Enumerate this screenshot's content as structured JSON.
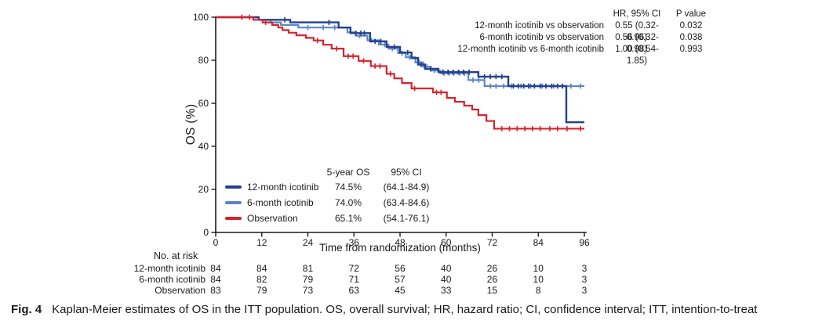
{
  "figure": {
    "caption_label": "Fig. 4",
    "caption_text": "Kaplan-Meier estimates of OS in the ITT population. OS, overall survival; HR, hazard ratio; CI, confidence interval; ITT, intention-to-treat"
  },
  "hr_table": {
    "col_headers": {
      "hr": "HR, 95% CI",
      "p": "P value"
    },
    "rows": [
      {
        "label": "12-month icotinib vs observation",
        "hr": "0.55 (0.32-0.96)",
        "p": "0.032"
      },
      {
        "label": "6-month icotinib vs observation",
        "hr": "0.56 (0.32-0.98)",
        "p": "0.038"
      },
      {
        "label": "12-month icotinib vs 6-month icotinib",
        "hr": "1.00 (0.54-1.85)",
        "p": "0.993"
      }
    ]
  },
  "legend_table": {
    "col_headers": {
      "os": "5-year OS",
      "ci": "95% CI"
    },
    "rows": [
      {
        "label": "12-month icotinib",
        "os": "74.5%",
        "ci": "(64.1-84.9)",
        "color": "#24418e"
      },
      {
        "label": "6-month icotinib",
        "os": "74.0%",
        "ci": "(63.4-84.6)",
        "color": "#5b87c7"
      },
      {
        "label": "Observation",
        "os": "65.1%",
        "ci": "(54.1-76.1)",
        "color": "#d8232f"
      }
    ]
  },
  "risk_table": {
    "title": "No. at risk",
    "rows": [
      {
        "label": "12-month icotinib",
        "values": [
          84,
          84,
          81,
          72,
          56,
          40,
          26,
          10,
          3
        ]
      },
      {
        "label": "6-month icotinib",
        "values": [
          84,
          82,
          79,
          71,
          57,
          40,
          26,
          10,
          3
        ]
      },
      {
        "label": "Observation",
        "values": [
          83,
          79,
          73,
          63,
          45,
          33,
          15,
          8,
          3
        ]
      }
    ]
  },
  "chart_data": {
    "type": "line",
    "subtype": "kaplan-meier-step",
    "title": "",
    "xlabel": "Time from randomization (months)",
    "ylabel": "OS (%)",
    "xlim": [
      0,
      96
    ],
    "ylim": [
      0,
      100
    ],
    "x_ticks": [
      0,
      12,
      24,
      36,
      48,
      60,
      72,
      84,
      96
    ],
    "y_ticks": [
      0,
      20,
      40,
      60,
      80,
      100
    ],
    "grid": false,
    "legend_position": "inside-lower-left",
    "series": [
      {
        "id": "12-month-icotinib",
        "name": "12-month icotinib",
        "color": "#24418e",
        "width": 2.4,
        "z": 2,
        "steps": [
          [
            0,
            100
          ],
          [
            11.2,
            98.8
          ],
          [
            19.4,
            97.6
          ],
          [
            32,
            95.2
          ],
          [
            35.1,
            92.6
          ],
          [
            40.2,
            88.8
          ],
          [
            44.5,
            86.2
          ],
          [
            48,
            83.6
          ],
          [
            51,
            81
          ],
          [
            52.7,
            78
          ],
          [
            54.5,
            76
          ],
          [
            58,
            74.5
          ],
          [
            68.4,
            72.4
          ],
          [
            76.2,
            68
          ],
          [
            91.3,
            51.2
          ],
          [
            96,
            51.2
          ]
        ],
        "censors": [
          [
            18,
            98.8
          ],
          [
            29.5,
            97.6
          ],
          [
            36.5,
            92.6
          ],
          [
            37.8,
            92.6
          ],
          [
            38.7,
            92.6
          ],
          [
            41.5,
            88.8
          ],
          [
            43,
            88.8
          ],
          [
            46.5,
            86.2
          ],
          [
            50,
            83.6
          ],
          [
            53.5,
            78
          ],
          [
            56,
            76
          ],
          [
            59.2,
            74.5
          ],
          [
            60.5,
            74.5
          ],
          [
            61.8,
            74.5
          ],
          [
            63.2,
            74.5
          ],
          [
            64.5,
            74.5
          ],
          [
            66,
            74.5
          ],
          [
            70,
            72.4
          ],
          [
            71.5,
            72.4
          ],
          [
            73,
            72.4
          ],
          [
            74.5,
            72.4
          ],
          [
            77.5,
            68
          ],
          [
            78.8,
            68
          ],
          [
            80.2,
            68
          ],
          [
            81.5,
            68
          ],
          [
            83,
            68
          ],
          [
            84.5,
            68
          ],
          [
            86,
            68
          ],
          [
            87.5,
            68
          ],
          [
            89,
            68
          ],
          [
            90.3,
            68
          ]
        ]
      },
      {
        "id": "6-month-icotinib",
        "name": "6-month icotinib",
        "color": "#5b87c7",
        "width": 2.2,
        "z": 1,
        "steps": [
          [
            0,
            100
          ],
          [
            11.2,
            98.8
          ],
          [
            14.3,
            97.6
          ],
          [
            17,
            96.4
          ],
          [
            21.5,
            95.2
          ],
          [
            34.3,
            93
          ],
          [
            36.5,
            91.4
          ],
          [
            39.5,
            89.3
          ],
          [
            42.5,
            87.3
          ],
          [
            45,
            85.4
          ],
          [
            47.5,
            83.3
          ],
          [
            49.5,
            81.4
          ],
          [
            52,
            79
          ],
          [
            54,
            77
          ],
          [
            56,
            75.2
          ],
          [
            58.5,
            74
          ],
          [
            65.8,
            70.8
          ],
          [
            70,
            68
          ],
          [
            96,
            68
          ]
        ],
        "censors": [
          [
            24,
            95.2
          ],
          [
            28,
            95.2
          ],
          [
            31,
            95.2
          ],
          [
            37.5,
            91.4
          ],
          [
            40.5,
            89.3
          ],
          [
            44,
            87.3
          ],
          [
            46,
            85.4
          ],
          [
            48.5,
            83.3
          ],
          [
            50.5,
            81.4
          ],
          [
            53,
            79
          ],
          [
            55,
            77
          ],
          [
            57,
            75.2
          ],
          [
            59.5,
            74
          ],
          [
            60.8,
            74
          ],
          [
            62,
            74
          ],
          [
            63.5,
            74
          ],
          [
            64.8,
            74
          ],
          [
            67,
            70.8
          ],
          [
            68.5,
            70.8
          ],
          [
            71.5,
            68
          ],
          [
            73,
            68
          ],
          [
            75,
            68
          ],
          [
            77,
            68
          ],
          [
            79.5,
            68
          ],
          [
            82,
            68
          ],
          [
            85,
            68
          ],
          [
            88,
            68
          ],
          [
            92.5,
            68
          ],
          [
            95,
            68
          ]
        ]
      },
      {
        "id": "observation",
        "name": "Observation",
        "color": "#d8232f",
        "width": 2.2,
        "z": 3,
        "steps": [
          [
            0,
            100
          ],
          [
            9.8,
            98.8
          ],
          [
            12.2,
            97.6
          ],
          [
            14.7,
            96.4
          ],
          [
            16.3,
            95.2
          ],
          [
            17.4,
            94
          ],
          [
            19,
            92.8
          ],
          [
            21,
            91.6
          ],
          [
            23.5,
            90.4
          ],
          [
            25.5,
            89.2
          ],
          [
            28,
            87.2
          ],
          [
            30.2,
            85.4
          ],
          [
            33.3,
            81.9
          ],
          [
            37.2,
            79.7
          ],
          [
            40.4,
            77.3
          ],
          [
            44.5,
            73.7
          ],
          [
            46.5,
            71.6
          ],
          [
            48.5,
            69.4
          ],
          [
            51,
            66.9
          ],
          [
            56.6,
            65.1
          ],
          [
            60.2,
            62.5
          ],
          [
            62.3,
            60.7
          ],
          [
            64.7,
            58.9
          ],
          [
            66.8,
            57.1
          ],
          [
            68.4,
            54.5
          ],
          [
            70.5,
            51.8
          ],
          [
            72.5,
            48.2
          ],
          [
            96,
            48.2
          ]
        ],
        "censors": [
          [
            6.8,
            100
          ],
          [
            8.8,
            100
          ],
          [
            13,
            97.6
          ],
          [
            26.5,
            89.2
          ],
          [
            31.5,
            85.4
          ],
          [
            34.5,
            81.9
          ],
          [
            35.8,
            81.9
          ],
          [
            38.5,
            79.7
          ],
          [
            41.5,
            77.3
          ],
          [
            42.8,
            77.3
          ],
          [
            45.5,
            73.7
          ],
          [
            51.8,
            66.9
          ],
          [
            57.5,
            65.1
          ],
          [
            58.7,
            65.1
          ],
          [
            74.5,
            48.2
          ],
          [
            76.5,
            48.2
          ],
          [
            78.5,
            48.2
          ],
          [
            80.5,
            48.2
          ],
          [
            82.5,
            48.2
          ],
          [
            84.5,
            48.2
          ],
          [
            87,
            48.2
          ],
          [
            89,
            48.2
          ],
          [
            91.5,
            48.2
          ],
          [
            95,
            48.2
          ]
        ]
      }
    ]
  }
}
